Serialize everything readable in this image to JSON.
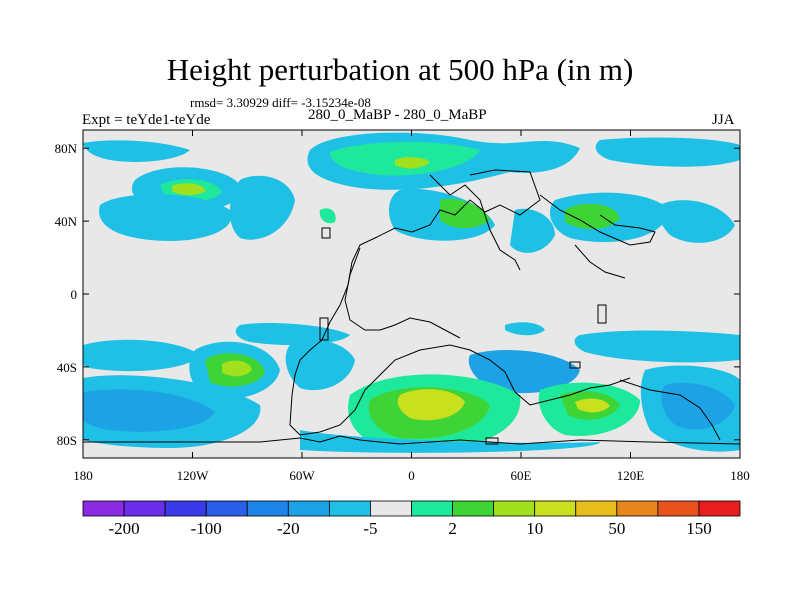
{
  "title": "Height perturbation at 500 hPa (in m)",
  "stats": "rmsd= 3.30929 diff= -3.15234e-08",
  "experiment": "Expt = teYde1-teYde",
  "period_compare": "280_0_MaBP - 280_0_MaBP",
  "season": "JJA",
  "axes": {
    "x_ticks": [
      {
        "value": -180,
        "label": "180"
      },
      {
        "value": -120,
        "label": "120W"
      },
      {
        "value": -60,
        "label": "60W"
      },
      {
        "value": 0,
        "label": "0"
      },
      {
        "value": 60,
        "label": "60E"
      },
      {
        "value": 120,
        "label": "120E"
      },
      {
        "value": 180,
        "label": "180"
      }
    ],
    "y_ticks": [
      {
        "value": 80,
        "label": "80N"
      },
      {
        "value": 40,
        "label": "40N"
      },
      {
        "value": 0,
        "label": "0"
      },
      {
        "value": -40,
        "label": "40S"
      },
      {
        "value": -80,
        "label": "80S"
      }
    ],
    "lon_range": [
      -180,
      180
    ],
    "lat_range": [
      -90,
      90
    ]
  },
  "colorbar": {
    "colors": [
      "#8a2be2",
      "#6a2ee8",
      "#3a3ae8",
      "#2a5ee8",
      "#1e84e8",
      "#1ea2e6",
      "#1ec0e6",
      "#e8e8e8",
      "#1ee89c",
      "#3ed436",
      "#a2e01e",
      "#c8e01e",
      "#e8be1e",
      "#e8861e",
      "#e8521e",
      "#e81e1e"
    ],
    "labels": [
      {
        "boundary": 1,
        "text": "-200"
      },
      {
        "boundary": 3,
        "text": "-100"
      },
      {
        "boundary": 5,
        "text": "-20"
      },
      {
        "boundary": 7,
        "text": "-5"
      },
      {
        "boundary": 9,
        "text": "2"
      },
      {
        "boundary": 11,
        "text": "10"
      },
      {
        "boundary": 13,
        "text": "50"
      },
      {
        "boundary": 15,
        "text": "150"
      }
    ]
  }
}
